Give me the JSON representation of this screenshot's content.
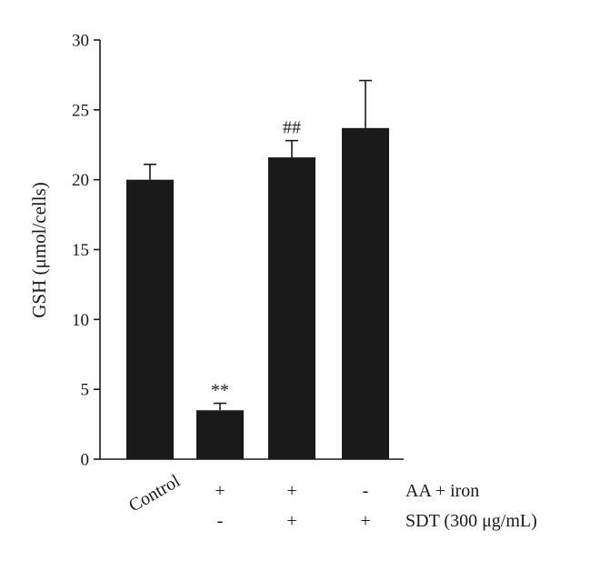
{
  "chart_data": {
    "type": "bar",
    "ylabel": "GSH (μmol/cells)",
    "ylim": [
      0,
      30
    ],
    "yticks": [
      0,
      5,
      10,
      15,
      20,
      25,
      30
    ],
    "bar_color": "#1a1a1a",
    "bars": [
      {
        "category": "Control",
        "value": 20.0,
        "error": 1.1,
        "annotation": ""
      },
      {
        "category": "",
        "value": 3.5,
        "error": 0.5,
        "annotation": "**"
      },
      {
        "category": "",
        "value": 21.6,
        "error": 1.2,
        "annotation": "##"
      },
      {
        "category": "",
        "value": 23.7,
        "error": 3.4,
        "annotation": ""
      }
    ],
    "conditions": [
      {
        "name": "AA + iron",
        "values": [
          "+",
          "+",
          "-"
        ]
      },
      {
        "name": "SDT (300 μg/mL)",
        "values": [
          "-",
          "+",
          "+"
        ]
      }
    ]
  }
}
